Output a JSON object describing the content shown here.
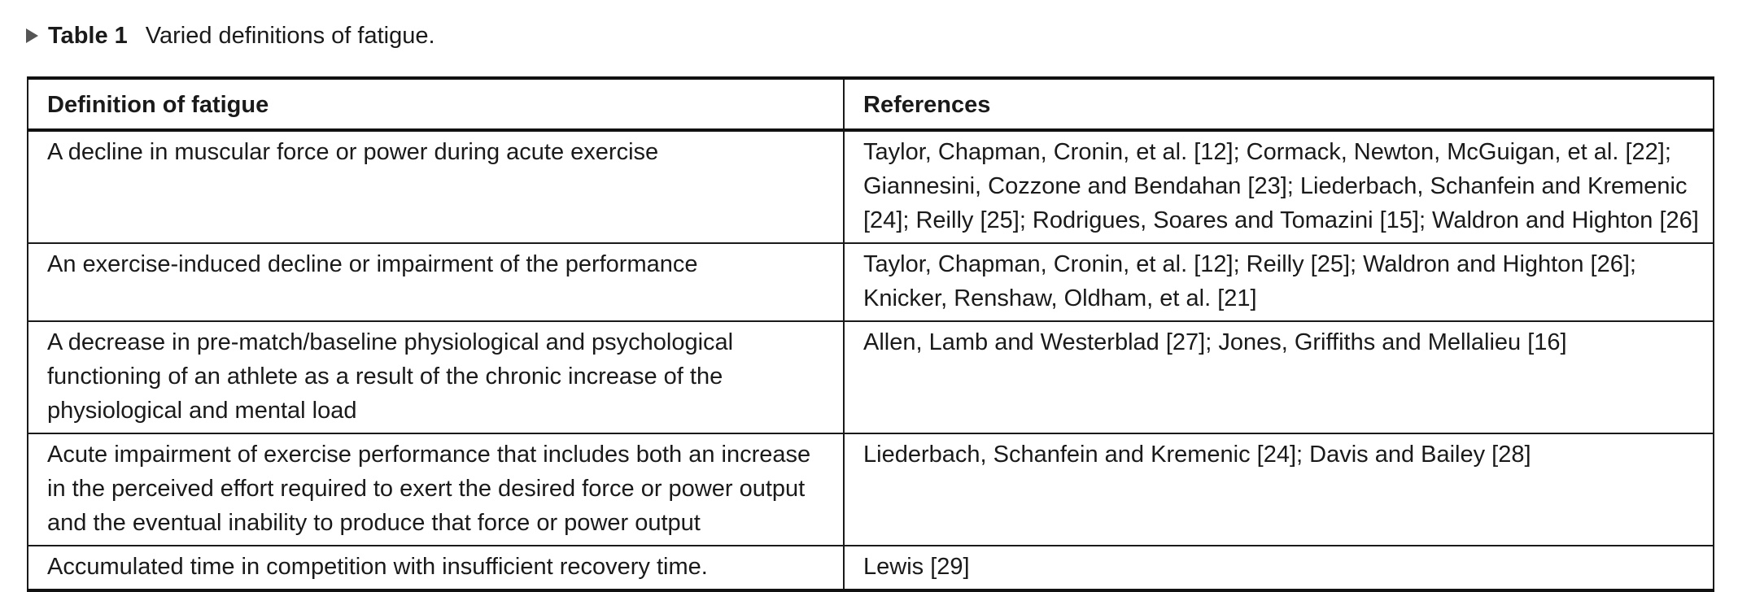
{
  "caption": {
    "label": "Table 1",
    "text": "Varied definitions of fatigue."
  },
  "table": {
    "headers": [
      "Definition of fatigue",
      "References"
    ],
    "rows": [
      {
        "definition": "A decline in muscular force or power during acute exercise",
        "references": "Taylor, Chapman, Cronin, et al. [12]; Cormack, Newton, McGuigan, et al. [22]; Giannesini, Cozzone and Bendahan [23]; Liederbach, Schanfein and Kremenic [24]; Reilly [25]; Rodrigues, Soares and Tomazini [15]; Waldron and Highton [26]"
      },
      {
        "definition": "An exercise-induced decline or impairment of the performance",
        "references": "Taylor, Chapman, Cronin, et al. [12]; Reilly [25]; Waldron and Highton [26]; Knicker, Renshaw, Oldham, et al. [21]"
      },
      {
        "definition": "A decrease in pre-match/baseline physiological and psychological functioning of an athlete as a result of the chronic increase of the physiological and mental load",
        "references": "Allen, Lamb and Westerblad [27]; Jones, Griffiths and Mellalieu [16]"
      },
      {
        "definition": "Acute impairment of exercise performance that includes both an increase in the perceived effort required to exert the desired force or power output and the eventual inability to produce that force or power output",
        "references": "Liederbach, Schanfein and Kremenic [24]; Davis and Bailey [28]"
      },
      {
        "definition": "Accumulated time in competition with insufficient recovery time.",
        "references": "Lewis [29]"
      }
    ]
  }
}
